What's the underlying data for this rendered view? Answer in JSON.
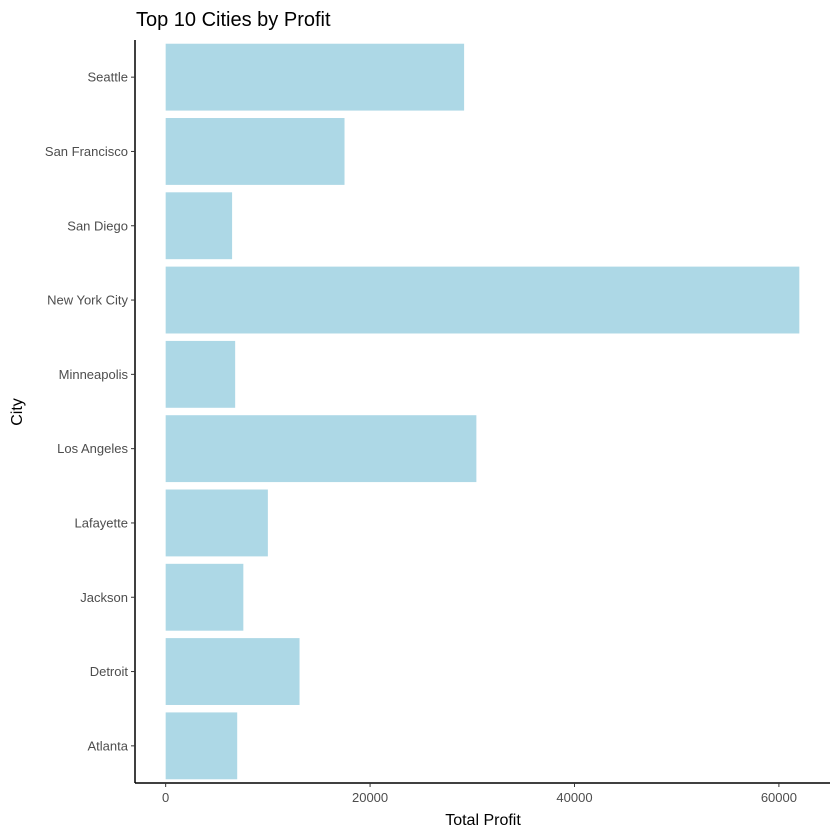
{
  "chart_data": {
    "type": "bar",
    "orientation": "horizontal",
    "title": "Top 10 Cities by Profit",
    "xlabel": "Total Profit",
    "ylabel": "City",
    "categories": [
      "Atlanta",
      "Detroit",
      "Jackson",
      "Lafayette",
      "Los Angeles",
      "Minneapolis",
      "New York City",
      "San Diego",
      "San Francisco",
      "Seattle"
    ],
    "values": [
      7000,
      13100,
      7600,
      10000,
      30400,
      6800,
      62000,
      6500,
      17500,
      29200
    ],
    "xlim": [
      -3000,
      65000
    ],
    "xticks": [
      0,
      20000,
      40000,
      60000
    ],
    "xtick_labels": [
      "0",
      "20000",
      "40000",
      "60000"
    ],
    "bar_color": "#add8e6",
    "grid": false,
    "legend": "none"
  }
}
